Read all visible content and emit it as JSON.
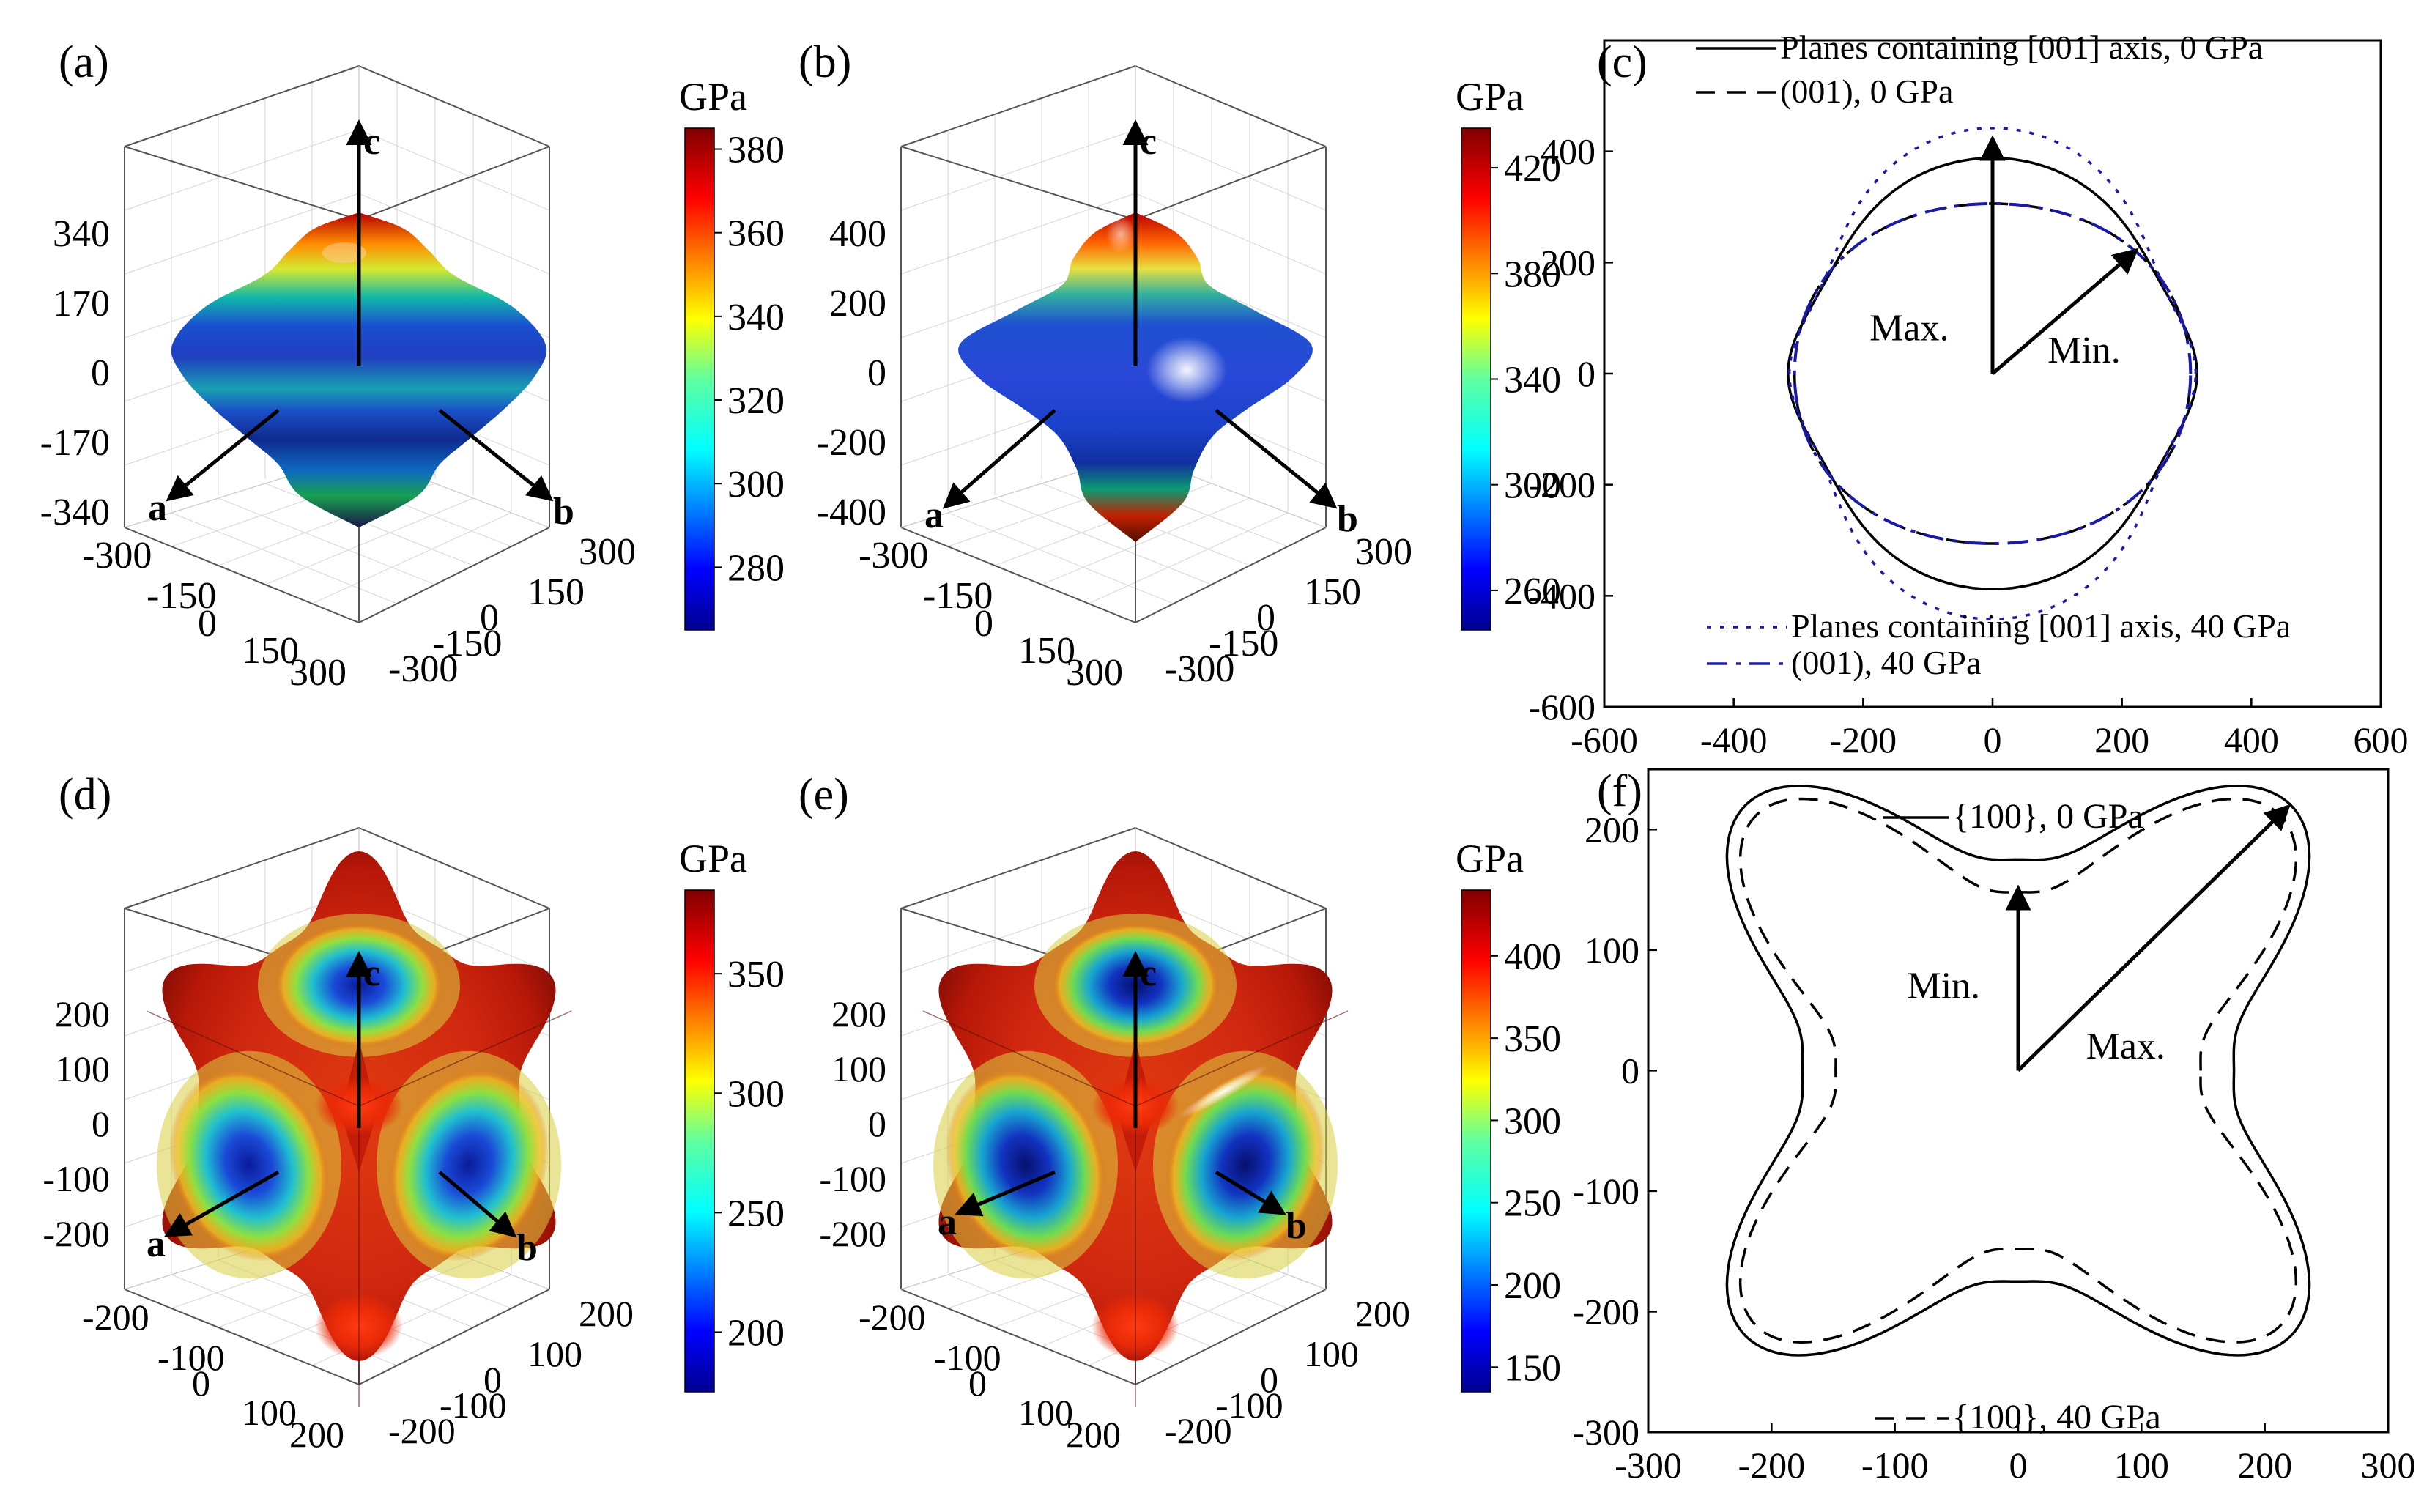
{
  "figure": {
    "panels": {
      "a": {
        "label": "(a)",
        "unit": "GPa",
        "colorbar_ticks": [
          "380",
          "360",
          "340",
          "320",
          "300",
          "280"
        ],
        "colorbar_range": [
          265,
          385
        ],
        "z_ticks": [
          "340",
          "170",
          "0",
          "-170",
          "-340"
        ],
        "a_ticks": [
          "-300",
          "-150",
          "0",
          "150",
          "300"
        ],
        "b_ticks": [
          "300",
          "150",
          "0",
          "-150",
          "-300"
        ],
        "axes": {
          "a": "a",
          "b": "b",
          "c": "c"
        }
      },
      "b": {
        "label": "(b)",
        "unit": "GPa",
        "colorbar_ticks": [
          "420",
          "380",
          "340",
          "300",
          "260"
        ],
        "colorbar_range": [
          245,
          435
        ],
        "z_ticks": [
          "400",
          "200",
          "0",
          "-200",
          "-400"
        ],
        "a_ticks": [
          "-300",
          "-150",
          "0",
          "150",
          "300"
        ],
        "b_ticks": [
          "300",
          "150",
          "0",
          "-150",
          "-300"
        ],
        "axes": {
          "a": "a",
          "b": "b",
          "c": "c"
        }
      },
      "d": {
        "label": "(d)",
        "unit": "GPa",
        "colorbar_ticks": [
          "350",
          "300",
          "250",
          "200"
        ],
        "colorbar_range": [
          175,
          385
        ],
        "z_ticks": [
          "200",
          "100",
          "0",
          "-100",
          "-200"
        ],
        "a_ticks": [
          "-200",
          "-100",
          "0",
          "100",
          "200"
        ],
        "b_ticks": [
          "200",
          "100",
          "0",
          "-100",
          "-200"
        ],
        "axes": {
          "a": "a",
          "b": "b",
          "c": "c"
        }
      },
      "e": {
        "label": "(e)",
        "unit": "GPa",
        "colorbar_ticks": [
          "400",
          "350",
          "300",
          "250",
          "200",
          "150"
        ],
        "colorbar_range": [
          135,
          440
        ],
        "z_ticks": [
          "200",
          "100",
          "0",
          "-100",
          "-200"
        ],
        "a_ticks": [
          "-200",
          "-100",
          "0",
          "100",
          "200"
        ],
        "b_ticks": [
          "200",
          "100",
          "0",
          "-100",
          "-200"
        ],
        "axes": {
          "a": "a",
          "b": "b",
          "c": "c"
        }
      }
    }
  },
  "chart_data": [
    {
      "type": "line",
      "panel": "(c)",
      "xlim": [
        -600,
        600
      ],
      "ylim": [
        -600,
        600
      ],
      "xticks": [
        -600,
        -400,
        -200,
        0,
        200,
        400,
        600
      ],
      "yticks": [
        -600,
        -400,
        -200,
        0,
        200,
        400
      ],
      "series": [
        {
          "name": "Planes containing [001] axis, 0 GPa",
          "style": "solid",
          "color": "#000000",
          "max": 378,
          "min": 306
        },
        {
          "name": "(001), 0 GPa",
          "style": "dashed",
          "color": "#000000",
          "r_axis": 306,
          "r_diag": 312
        },
        {
          "name": "Planes containing [001] axis, 40 GPa",
          "style": "dotted",
          "color": "#1a1aa8",
          "max": 432,
          "min": 304
        },
        {
          "name": "(001), 40 GPa",
          "style": "dashdot",
          "color": "#1a1aa8",
          "r_axis": 306,
          "r_diag": 312
        }
      ],
      "annotations": [
        "Max.",
        "Min."
      ]
    },
    {
      "type": "line",
      "panel": "(f)",
      "xlim": [
        -300,
        300
      ],
      "ylim": [
        -300,
        250
      ],
      "xticks": [
        -300,
        -200,
        -100,
        0,
        100,
        200,
        300
      ],
      "yticks": [
        -300,
        -200,
        -100,
        0,
        100,
        200
      ],
      "series": [
        {
          "name": "{100}, 0 GPa",
          "style": "solid",
          "color": "#000000",
          "min": 175,
          "max": 312
        },
        {
          "name": "{100}, 40 GPa",
          "style": "dashed",
          "color": "#000000",
          "min": 148,
          "max": 300
        }
      ],
      "annotations": [
        "Min.",
        "Max."
      ]
    }
  ]
}
